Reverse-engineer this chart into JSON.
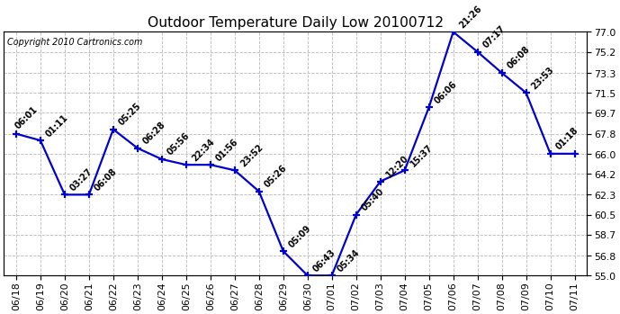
{
  "title": "Outdoor Temperature Daily Low 20100712",
  "copyright": "Copyright 2010 Cartronics.com",
  "background_color": "#ffffff",
  "line_color": "#0000cc",
  "grid_color": "#bbbbbb",
  "dates": [
    "06/18",
    "06/19",
    "06/20",
    "06/21",
    "06/22",
    "06/23",
    "06/24",
    "06/25",
    "06/26",
    "06/27",
    "06/28",
    "06/29",
    "06/30",
    "07/01",
    "07/02",
    "07/03",
    "07/04",
    "07/05",
    "07/06",
    "07/07",
    "07/08",
    "07/09",
    "07/10",
    "07/11"
  ],
  "temps": [
    67.8,
    67.2,
    62.3,
    62.3,
    68.2,
    66.5,
    65.5,
    65.0,
    65.0,
    64.5,
    62.6,
    57.2,
    55.0,
    55.0,
    60.5,
    63.5,
    64.5,
    70.2,
    77.0,
    75.2,
    73.3,
    71.5,
    66.0,
    66.0
  ],
  "point_labels": [
    "06:01",
    "01:11",
    "03:27",
    "06:08",
    "05:25",
    "06:28",
    "05:56",
    "22:34",
    "01:56",
    "23:52",
    "05:26",
    "05:09",
    "06:43",
    "05:34",
    "05:40",
    "12:20",
    "15:37",
    "06:06",
    "21:26",
    "07:17",
    "06:08",
    "23:53",
    "01:18",
    ""
  ],
  "ylim": [
    55.0,
    77.0
  ],
  "yticks": [
    55.0,
    56.8,
    58.7,
    60.5,
    62.3,
    64.2,
    66.0,
    67.8,
    69.7,
    71.5,
    73.3,
    75.2,
    77.0
  ],
  "figsize": [
    6.5,
    3.3
  ],
  "dpi": 106
}
